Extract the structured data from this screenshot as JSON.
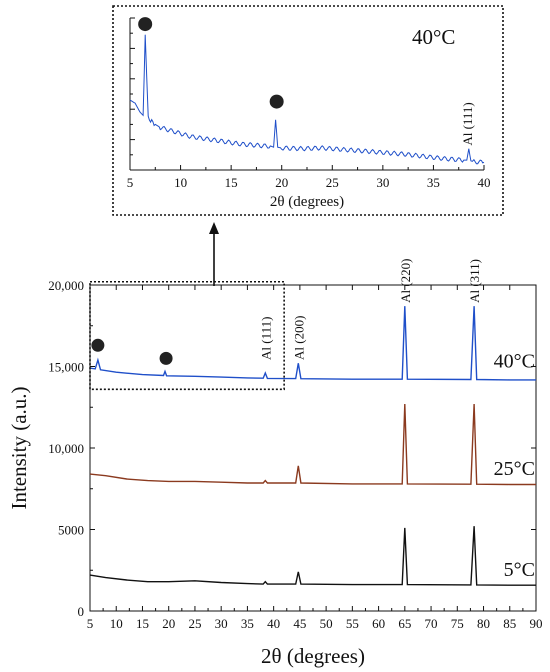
{
  "chart_data": [
    {
      "type": "line",
      "title": "",
      "xlabel": "2θ (degrees)",
      "ylabel": "Intensity (a.u.)",
      "xlim": [
        5,
        90
      ],
      "ylim": [
        0,
        20000
      ],
      "x_ticks": [
        5,
        10,
        15,
        20,
        25,
        30,
        35,
        40,
        45,
        50,
        55,
        60,
        65,
        70,
        75,
        80,
        85,
        90
      ],
      "y_ticks": [
        {
          "value": 0,
          "label": "0"
        },
        {
          "value": 5000,
          "label": "5000"
        },
        {
          "value": 10000,
          "label": "10,000"
        },
        {
          "value": 15000,
          "label": "15,000"
        },
        {
          "value": 20000,
          "label": "20,000"
        }
      ],
      "series": [
        {
          "name": "5°C",
          "color": "#111111",
          "points": [
            [
              5,
              2200
            ],
            [
              8,
              2050
            ],
            [
              12,
              1900
            ],
            [
              16,
              1800
            ],
            [
              20,
              1800
            ],
            [
              25,
              1850
            ],
            [
              30,
              1750
            ],
            [
              35,
              1680
            ],
            [
              38,
              1650
            ],
            [
              38.4,
              1800
            ],
            [
              38.8,
              1650
            ],
            [
              44.2,
              1650
            ],
            [
              44.7,
              2400
            ],
            [
              45.2,
              1650
            ],
            [
              55,
              1620
            ],
            [
              64.5,
              1620
            ],
            [
              65,
              5100
            ],
            [
              65.5,
              1620
            ],
            [
              77.6,
              1600
            ],
            [
              78.2,
              5200
            ],
            [
              78.7,
              1600
            ],
            [
              85,
              1580
            ],
            [
              90,
              1580
            ]
          ]
        },
        {
          "name": "25°C",
          "color": "#8b3a1f",
          "points": [
            [
              5,
              8400
            ],
            [
              8,
              8300
            ],
            [
              12,
              8100
            ],
            [
              16,
              8000
            ],
            [
              20,
              7950
            ],
            [
              25,
              7950
            ],
            [
              30,
              7900
            ],
            [
              35,
              7850
            ],
            [
              38,
              7850
            ],
            [
              38.4,
              8000
            ],
            [
              38.8,
              7850
            ],
            [
              44.2,
              7850
            ],
            [
              44.7,
              8900
            ],
            [
              45.2,
              7850
            ],
            [
              55,
              7800
            ],
            [
              64.5,
              7800
            ],
            [
              65,
              12700
            ],
            [
              65.5,
              7800
            ],
            [
              77.6,
              7780
            ],
            [
              78.2,
              12700
            ],
            [
              78.7,
              7780
            ],
            [
              85,
              7760
            ],
            [
              90,
              7760
            ]
          ]
        },
        {
          "name": "40°C",
          "color": "#1f4fc9",
          "points": [
            [
              5,
              14900
            ],
            [
              6,
              14850
            ],
            [
              6.5,
              15400
            ],
            [
              7,
              14800
            ],
            [
              10,
              14650
            ],
            [
              15,
              14500
            ],
            [
              19,
              14450
            ],
            [
              19.3,
              14700
            ],
            [
              19.6,
              14430
            ],
            [
              25,
              14400
            ],
            [
              30,
              14350
            ],
            [
              35,
              14300
            ],
            [
              38,
              14280
            ],
            [
              38.4,
              14600
            ],
            [
              38.8,
              14270
            ],
            [
              44.2,
              14260
            ],
            [
              44.7,
              15200
            ],
            [
              45.2,
              14250
            ],
            [
              55,
              14220
            ],
            [
              64.5,
              14220
            ],
            [
              65,
              18700
            ],
            [
              65.5,
              14220
            ],
            [
              77.6,
              14200
            ],
            [
              78.2,
              18700
            ],
            [
              78.7,
              14200
            ],
            [
              85,
              14180
            ],
            [
              90,
              14180
            ]
          ]
        }
      ],
      "series_labels": [
        {
          "text": "40°C",
          "series": "40°C"
        },
        {
          "text": "25°C",
          "series": "25°C"
        },
        {
          "text": "5°C",
          "series": "5°C"
        }
      ],
      "annotations": [
        {
          "text": "Al (111)",
          "x": 38.4
        },
        {
          "text": "Al (200)",
          "x": 44.7
        },
        {
          "text": "Al (220)",
          "x": 65
        },
        {
          "text": "Al (311)",
          "x": 78.2
        }
      ],
      "circle_markers": [
        {
          "x": 6.5,
          "y": 16300
        },
        {
          "x": 19.5,
          "y": 15500
        }
      ],
      "zoom_box": {
        "x": [
          5,
          42
        ],
        "y": [
          13600,
          20200
        ]
      }
    },
    {
      "type": "line",
      "title": "40°C",
      "xlabel": "2θ (degrees)",
      "xlim": [
        5,
        40
      ],
      "x_ticks": [
        5,
        10,
        15,
        20,
        25,
        30,
        35,
        40
      ],
      "ylim": [
        0,
        100
      ],
      "series": [
        {
          "name": "40°C",
          "color": "#1f4fc9",
          "points": [
            [
              5,
              46
            ],
            [
              5.5,
              44
            ],
            [
              6,
              38
            ],
            [
              6.3,
              36
            ],
            [
              6.5,
              89
            ],
            [
              6.8,
              34
            ],
            [
              7.5,
              30
            ],
            [
              8,
              28
            ],
            [
              9,
              26
            ],
            [
              10,
              24
            ],
            [
              11,
              22
            ],
            [
              12,
              21
            ],
            [
              13,
              20
            ],
            [
              14,
              19
            ],
            [
              15,
              18
            ],
            [
              16,
              17
            ],
            [
              17,
              16.5
            ],
            [
              18,
              16
            ],
            [
              19,
              15.5
            ],
            [
              19.2,
              15
            ],
            [
              19.4,
              33
            ],
            [
              19.6,
              15
            ],
            [
              20,
              14.5
            ],
            [
              22,
              14
            ],
            [
              24,
              14.5
            ],
            [
              26,
              13.5
            ],
            [
              28,
              12.5
            ],
            [
              30,
              11.5
            ],
            [
              32,
              10.5
            ],
            [
              34,
              9
            ],
            [
              36,
              7.5
            ],
            [
              38,
              6.5
            ],
            [
              38.3,
              6.5
            ],
            [
              38.5,
              14
            ],
            [
              38.7,
              6
            ],
            [
              39,
              5.5
            ],
            [
              40,
              5
            ]
          ]
        }
      ],
      "annotations": [
        {
          "text": "Al (111)",
          "x": 38.4
        }
      ],
      "circle_markers": [
        {
          "x": 6.5,
          "y": 96
        },
        {
          "x": 19.5,
          "y": 45
        }
      ]
    }
  ]
}
